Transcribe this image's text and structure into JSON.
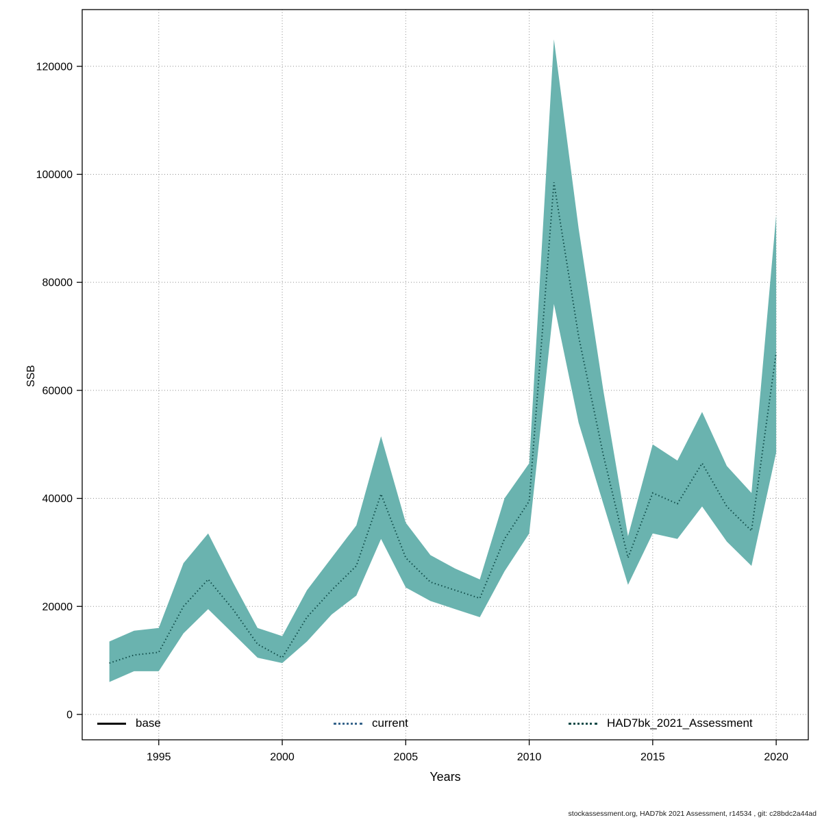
{
  "footer": "stockassessment.org, HAD7bk 2021 Assessment, r14534 , git: c28bdc2a44ad",
  "chart_data": {
    "type": "area",
    "title": "",
    "xlabel": "Years",
    "ylabel": "SSB",
    "grid": true,
    "legend_position": "bottom",
    "x_ticks": [
      1995,
      2000,
      2005,
      2010,
      2015,
      2020
    ],
    "y_ticks": [
      0,
      20000,
      40000,
      60000,
      80000,
      100000,
      120000
    ],
    "xlim": [
      1991.9,
      2021.3
    ],
    "ylim": [
      -4700,
      130500
    ],
    "x": [
      1993,
      1994,
      1995,
      1996,
      1997,
      1998,
      1999,
      2000,
      2001,
      2002,
      2003,
      2004,
      2005,
      2006,
      2007,
      2008,
      2009,
      2010,
      2011,
      2012,
      2013,
      2014,
      2015,
      2016,
      2017,
      2018,
      2019,
      2020
    ],
    "series": [
      {
        "name": "HAD7bk_2021_Assessment",
        "est": [
          9500,
          11000,
          11500,
          20000,
          25000,
          19500,
          13000,
          10500,
          18000,
          23000,
          27500,
          40800,
          29000,
          24500,
          23000,
          21500,
          32500,
          39500,
          98500,
          70000,
          48000,
          29000,
          41000,
          39000,
          46500,
          38500,
          34000,
          67000
        ],
        "lo": [
          6000,
          8000,
          8000,
          15000,
          19500,
          15000,
          10500,
          9500,
          13500,
          18500,
          22000,
          32500,
          23500,
          21000,
          19500,
          18000,
          26500,
          33500,
          76000,
          54000,
          39000,
          24000,
          33500,
          32500,
          38500,
          32000,
          27500,
          48500
        ],
        "hi": [
          13500,
          15500,
          16000,
          28000,
          33500,
          24500,
          16000,
          14500,
          23000,
          29000,
          35000,
          51500,
          35500,
          29500,
          27000,
          25000,
          40000,
          46500,
          125000,
          90000,
          60000,
          33000,
          50000,
          47000,
          56000,
          46000,
          41000,
          92500
        ]
      }
    ],
    "colors": {
      "ribbon": "#6ab3af",
      "estimate_line": "#0e4a47",
      "grid": "#8f8f8f",
      "base_line": "#000000",
      "current_line": "#36648b"
    },
    "legend": [
      {
        "label": "base",
        "color": "#000000",
        "style": "solid"
      },
      {
        "label": "current",
        "color": "#36648b",
        "style": "dotted"
      },
      {
        "label": "HAD7bk_2021_Assessment",
        "color": "#0e4a47",
        "style": "dotted"
      }
    ]
  }
}
